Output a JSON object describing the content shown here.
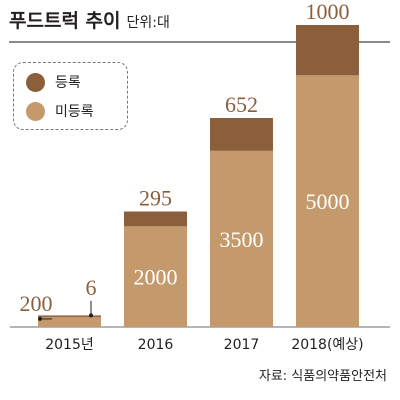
{
  "title": {
    "main": "푸드트럭 추이",
    "unit": "단위:대"
  },
  "legend": [
    {
      "label": "등록",
      "color": "#8b5e3c"
    },
    {
      "label": "미등록",
      "color": "#c49a6c"
    }
  ],
  "source": "자료: 식품의약품안전처",
  "chart_data": {
    "type": "bar",
    "stacked": true,
    "categories": [
      "2015년",
      "2016",
      "2017",
      "2018(예상)"
    ],
    "series": [
      {
        "name": "미등록",
        "values": [
          200,
          2000,
          3500,
          5000
        ],
        "color": "#c49a6c",
        "label_color": "#ffffff",
        "outside_label_color": "#8b5e3c"
      },
      {
        "name": "등록",
        "values": [
          6,
          295,
          652,
          1000
        ],
        "color": "#8b5e3c",
        "label_color": "#8b5e3c",
        "inside_label_color": "#ffffff"
      }
    ],
    "ylim": [
      0,
      6000
    ],
    "grid": false,
    "legend_position": "top-left"
  }
}
